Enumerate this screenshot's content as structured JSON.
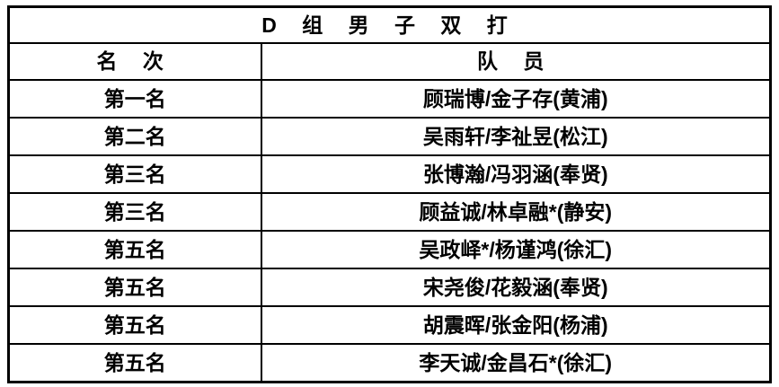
{
  "table": {
    "title": "D 组 男 子 双 打",
    "columns": [
      "名 次",
      "队 员"
    ],
    "rows": [
      {
        "rank": "第一名",
        "players": "顾瑞博/金子存(黄浦)"
      },
      {
        "rank": "第二名",
        "players": "吴雨轩/李祉昱(松江)"
      },
      {
        "rank": "第三名",
        "players": "张博瀚/冯羽涵(奉贤)"
      },
      {
        "rank": "第三名",
        "players": "顾益诚/林卓融*(静安)"
      },
      {
        "rank": "第五名",
        "players": "吴政峄*/杨谨鸿(徐汇)"
      },
      {
        "rank": "第五名",
        "players": "宋尧俊/花毅涵(奉贤)"
      },
      {
        "rank": "第五名",
        "players": "胡震晖/张金阳(杨浦)"
      },
      {
        "rank": "第五名",
        "players": "李天诚/金昌石*(徐汇)"
      }
    ],
    "colors": {
      "text": "#000000",
      "border": "#000000",
      "background": "#ffffff"
    }
  }
}
